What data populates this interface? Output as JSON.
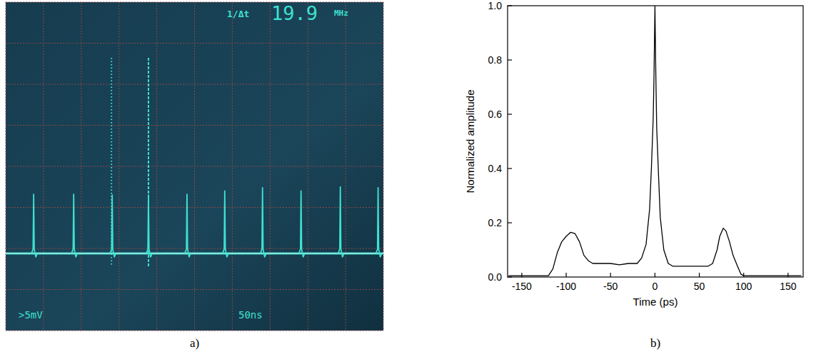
{
  "chart_data": [
    {
      "type": "scope",
      "caption": "a)",
      "x_scale": "50ns",
      "y_scale": ">5mV",
      "readout": {
        "label": "1/Δt",
        "value": 19.9,
        "unit": "MHz"
      },
      "x": [
        37,
        90,
        141,
        189,
        240,
        290,
        340,
        391,
        443,
        493
      ],
      "values": [
        -3.4,
        -3.4,
        -3.5,
        -3.5,
        -3.4,
        -3.0,
        -2.6,
        -3.0,
        -2.5,
        -2.6
      ],
      "baseline": -10.6,
      "cursors": [
        140,
        189
      ],
      "xlim": [
        0,
        500
      ],
      "xticks": [
        0,
        50,
        100,
        150,
        200,
        250,
        300,
        350,
        400,
        450,
        500
      ],
      "ylim": [
        -20,
        20
      ],
      "yticks": [
        -20,
        -15,
        -10,
        -5,
        0,
        5,
        10,
        15,
        20
      ],
      "grid": true,
      "tick_labels": false,
      "color": "#3fe0d0"
    },
    {
      "type": "line",
      "caption": "b)",
      "x_label": "Time (ps)",
      "y_label": "Normalized amplitude",
      "x": [
        -165,
        -150,
        -130,
        -120,
        -115,
        -110,
        -105,
        -100,
        -95,
        -90,
        -85,
        -80,
        -75,
        -70,
        -60,
        -50,
        -40,
        -30,
        -20,
        -15,
        -10,
        -6,
        -4,
        -2,
        -1,
        0,
        1,
        2,
        4,
        6,
        10,
        15,
        20,
        30,
        40,
        50,
        60,
        65,
        70,
        73,
        77,
        80,
        84,
        88,
        93,
        97,
        100,
        110,
        130,
        150,
        165
      ],
      "values": [
        0.005,
        0.005,
        0.005,
        0.005,
        0.03,
        0.09,
        0.13,
        0.15,
        0.165,
        0.16,
        0.13,
        0.08,
        0.06,
        0.05,
        0.05,
        0.05,
        0.045,
        0.05,
        0.05,
        0.07,
        0.12,
        0.25,
        0.4,
        0.58,
        0.75,
        1.0,
        0.75,
        0.55,
        0.38,
        0.22,
        0.1,
        0.05,
        0.04,
        0.04,
        0.04,
        0.04,
        0.04,
        0.05,
        0.1,
        0.15,
        0.18,
        0.17,
        0.13,
        0.08,
        0.04,
        0.01,
        0.005,
        0.005,
        0.005,
        0.005,
        0.005
      ],
      "color": "#000000",
      "xlim": [
        -166,
        167
      ],
      "xticks": [
        -150,
        -100,
        -50,
        0,
        50,
        100,
        150
      ],
      "ylim": [
        0,
        1
      ],
      "yticks": [
        {
          "value": 0,
          "label": "0.0"
        },
        {
          "value": 0.2,
          "label": "0.2"
        },
        {
          "value": 0.4,
          "label": "0.4"
        },
        {
          "value": 0.6,
          "label": "0.6"
        },
        {
          "value": 0.8,
          "label": "0.8"
        },
        {
          "value": 1,
          "label": "1.0"
        }
      ],
      "grid": false
    }
  ]
}
